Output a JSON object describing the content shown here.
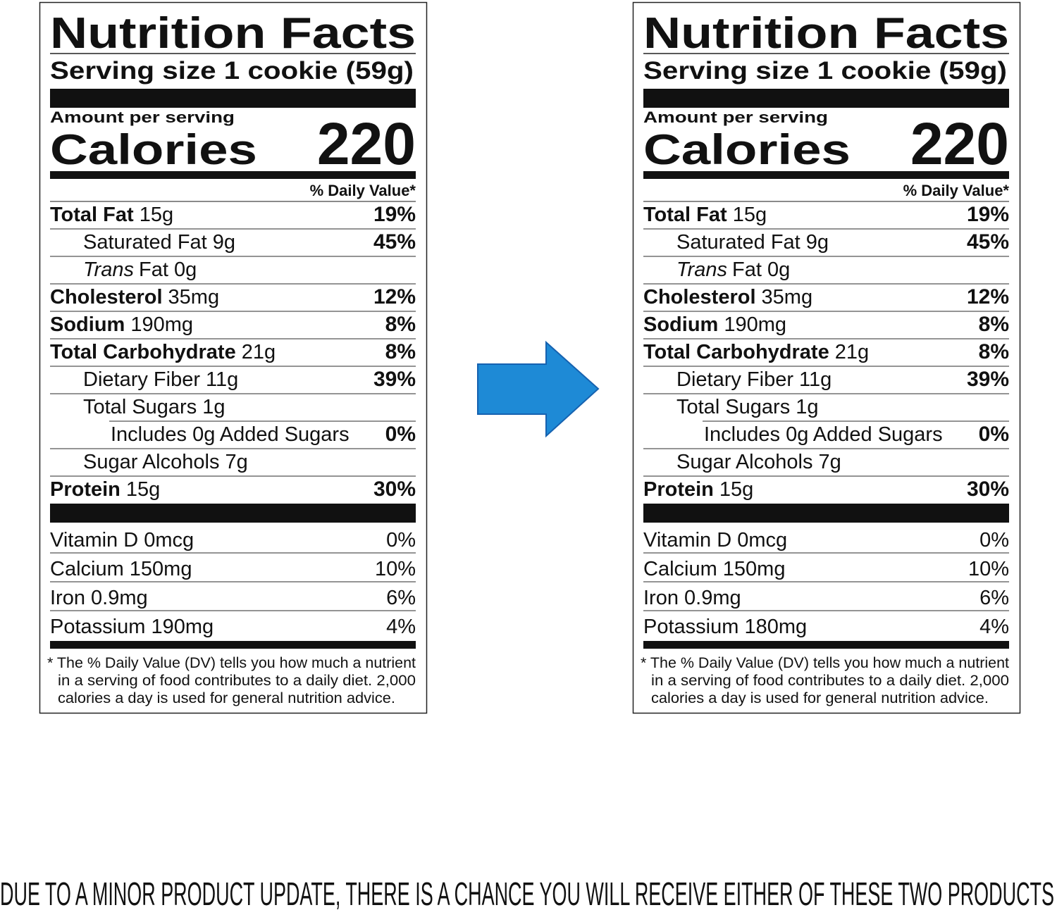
{
  "labels": [
    {
      "title": "Nutrition Facts",
      "serving_size": "Serving size 1 cookie (59g)",
      "amount_per_serving": "Amount per serving",
      "calories_label": "Calories",
      "calories": "220",
      "daily_value_header": "% Daily Value*",
      "nutrients": [
        {
          "name": "Total Fat",
          "amount": "15g",
          "dv": "19%"
        },
        {
          "label": "Saturated Fat 9g",
          "dv": "45%"
        },
        {
          "italic": "Trans",
          "label": "Fat 0g"
        },
        {
          "name": "Cholesterol",
          "amount": "35mg",
          "dv": "12%"
        },
        {
          "name": "Sodium",
          "amount": "190mg",
          "dv": "8%"
        },
        {
          "name": "Total Carbohydrate",
          "amount": "21g",
          "dv": "8%"
        },
        {
          "label": "Dietary Fiber 11g",
          "dv": "39%"
        },
        {
          "label": "Total Sugars 1g"
        },
        {
          "label": "Includes 0g Added Sugars",
          "dv": "0%"
        },
        {
          "label": "Sugar Alcohols 7g"
        },
        {
          "name": "Protein",
          "amount": "15g",
          "dv": "30%"
        }
      ],
      "vitamins": [
        {
          "label": "Vitamin D 0mcg",
          "dv": "0%"
        },
        {
          "label": "Calcium 150mg",
          "dv": "10%"
        },
        {
          "label": "Iron 0.9mg",
          "dv": "6%"
        },
        {
          "label": "Potassium 190mg",
          "dv": "4%"
        }
      ],
      "footnote": [
        "* The % Daily Value (DV) tells you how much a nutrient",
        "in a serving of food contributes to a daily diet. 2,000",
        "calories a day is used for general nutrition advice."
      ]
    },
    {
      "title": "Nutrition Facts",
      "serving_size": "Serving size 1 cookie (59g)",
      "amount_per_serving": "Amount per serving",
      "calories_label": "Calories",
      "calories": "220",
      "daily_value_header": "% Daily Value*",
      "nutrients": [
        {
          "name": "Total Fat",
          "amount": "15g",
          "dv": "19%"
        },
        {
          "label": "Saturated Fat 9g",
          "dv": "45%"
        },
        {
          "italic": "Trans",
          "label": "Fat 0g"
        },
        {
          "name": "Cholesterol",
          "amount": "35mg",
          "dv": "12%"
        },
        {
          "name": "Sodium",
          "amount": "190mg",
          "dv": "8%"
        },
        {
          "name": "Total Carbohydrate",
          "amount": "21g",
          "dv": "8%"
        },
        {
          "label": "Dietary Fiber 11g",
          "dv": "39%"
        },
        {
          "label": "Total Sugars 1g"
        },
        {
          "label": "Includes 0g Added Sugars",
          "dv": "0%"
        },
        {
          "label": "Sugar Alcohols 7g"
        },
        {
          "name": "Protein",
          "amount": "15g",
          "dv": "30%"
        }
      ],
      "vitamins": [
        {
          "label": "Vitamin D 0mcg",
          "dv": "0%"
        },
        {
          "label": "Calcium 150mg",
          "dv": "10%"
        },
        {
          "label": "Iron 0.9mg",
          "dv": "6%"
        },
        {
          "label": "Potassium 180mg",
          "dv": "4%"
        }
      ],
      "footnote": [
        "* The % Daily Value (DV) tells you how much a nutrient",
        "in a serving of food contributes to a daily diet. 2,000",
        "calories a day is used for general nutrition advice."
      ]
    }
  ],
  "notice": "DUE TO A MINOR PRODUCT UPDATE, THERE IS A CHANCE YOU WILL RECEIVE EITHER OF THESE TWO PRODUCTS"
}
